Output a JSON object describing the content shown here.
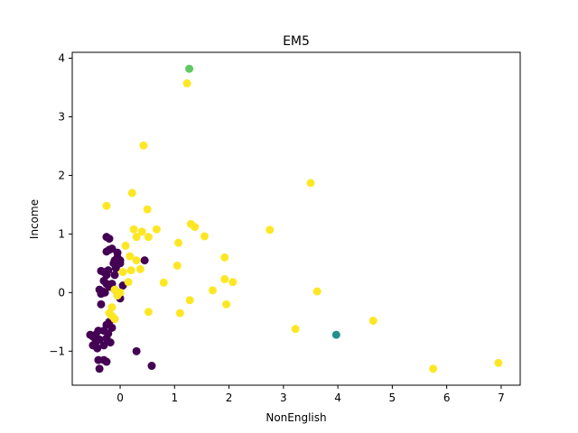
{
  "chart_data": {
    "type": "scatter",
    "title": "EM5",
    "xlabel": "NonEnglish",
    "ylabel": "Income",
    "xlim": [
      -0.88,
      7.35
    ],
    "ylim": [
      -1.58,
      4.1
    ],
    "x_ticks": [
      "0",
      "1",
      "2",
      "3",
      "4",
      "5",
      "6",
      "7"
    ],
    "y_ticks": [
      "−1",
      "0",
      "1",
      "2",
      "3",
      "4"
    ],
    "x_tick_values": [
      0,
      1,
      2,
      3,
      4,
      5,
      6,
      7
    ],
    "y_tick_values": [
      -1,
      0,
      1,
      2,
      3,
      4
    ],
    "grid": false,
    "legend": "none",
    "series": [
      {
        "color": "#440154",
        "points": [
          [
            -0.25,
            0.95
          ],
          [
            -0.2,
            0.73
          ],
          [
            -0.15,
            0.75
          ],
          [
            -0.25,
            0.7
          ],
          [
            -0.2,
            0.92
          ],
          [
            -0.05,
            0.68
          ],
          [
            -0.1,
            0.55
          ],
          [
            -0.05,
            0.6
          ],
          [
            0.0,
            0.55
          ],
          [
            -0.12,
            0.5
          ],
          [
            -0.05,
            0.48
          ],
          [
            0.0,
            0.5
          ],
          [
            -0.08,
            0.42
          ],
          [
            -0.35,
            0.37
          ],
          [
            -0.3,
            0.35
          ],
          [
            -0.25,
            0.3
          ],
          [
            -0.22,
            0.38
          ],
          [
            -0.1,
            0.3
          ],
          [
            -0.3,
            0.2
          ],
          [
            -0.25,
            0.15
          ],
          [
            -0.2,
            0.1
          ],
          [
            -0.15,
            0.15
          ],
          [
            -0.1,
            0.05
          ],
          [
            -0.05,
            0.0
          ],
          [
            0.05,
            0.12
          ],
          [
            -0.38,
            0.05
          ],
          [
            -0.32,
            0.02
          ],
          [
            -0.35,
            -0.02
          ],
          [
            -0.28,
            0.0
          ],
          [
            -0.35,
            -0.2
          ],
          [
            0.0,
            -0.1
          ],
          [
            -0.2,
            -0.5
          ],
          [
            -0.25,
            -0.55
          ],
          [
            -0.15,
            -0.6
          ],
          [
            -0.3,
            -0.65
          ],
          [
            -0.22,
            -0.7
          ],
          [
            -0.25,
            -0.78
          ],
          [
            -0.4,
            -0.65
          ],
          [
            -0.45,
            -0.72
          ],
          [
            -0.5,
            -0.75
          ],
          [
            -0.55,
            -0.72
          ],
          [
            -0.38,
            -0.8
          ],
          [
            -0.45,
            -0.85
          ],
          [
            -0.5,
            -0.9
          ],
          [
            -0.42,
            -0.95
          ],
          [
            -0.3,
            -0.9
          ],
          [
            -0.18,
            -0.85
          ],
          [
            -0.4,
            -1.15
          ],
          [
            -0.3,
            -1.15
          ],
          [
            -0.25,
            -1.18
          ],
          [
            -0.38,
            -1.3
          ],
          [
            0.3,
            -1.0
          ],
          [
            0.58,
            -1.25
          ],
          [
            0.45,
            0.55
          ]
        ]
      },
      {
        "color": "#fde725",
        "points": [
          [
            1.23,
            3.57
          ],
          [
            0.43,
            2.51
          ],
          [
            3.5,
            1.87
          ],
          [
            0.22,
            1.7
          ],
          [
            -0.25,
            1.48
          ],
          [
            0.5,
            1.42
          ],
          [
            1.3,
            1.17
          ],
          [
            1.37,
            1.12
          ],
          [
            0.25,
            1.08
          ],
          [
            0.4,
            1.04
          ],
          [
            0.67,
            1.08
          ],
          [
            2.75,
            1.07
          ],
          [
            0.3,
            0.95
          ],
          [
            0.52,
            0.95
          ],
          [
            1.55,
            0.96
          ],
          [
            1.07,
            0.85
          ],
          [
            0.1,
            0.8
          ],
          [
            0.18,
            0.62
          ],
          [
            0.3,
            0.55
          ],
          [
            1.92,
            0.6
          ],
          [
            0.2,
            0.38
          ],
          [
            0.37,
            0.4
          ],
          [
            0.05,
            0.35
          ],
          [
            1.05,
            0.46
          ],
          [
            0.8,
            0.17
          ],
          [
            0.15,
            0.18
          ],
          [
            1.92,
            0.23
          ],
          [
            2.07,
            0.18
          ],
          [
            1.7,
            0.04
          ],
          [
            3.62,
            0.02
          ],
          [
            0.0,
            0.0
          ],
          [
            -0.1,
            0.05
          ],
          [
            -0.05,
            -0.05
          ],
          [
            -0.15,
            -0.25
          ],
          [
            -0.2,
            -0.35
          ],
          [
            1.28,
            -0.13
          ],
          [
            1.95,
            -0.2
          ],
          [
            0.52,
            -0.33
          ],
          [
            1.1,
            -0.35
          ],
          [
            -0.1,
            -0.45
          ],
          [
            -0.15,
            -0.4
          ],
          [
            3.22,
            -0.62
          ],
          [
            4.65,
            -0.48
          ],
          [
            5.75,
            -1.3
          ],
          [
            6.95,
            -1.2
          ]
        ]
      },
      {
        "color": "#21918c",
        "points": [
          [
            3.97,
            -0.72
          ]
        ]
      },
      {
        "color": "#5ec962",
        "points": [
          [
            1.27,
            3.82
          ]
        ]
      }
    ]
  }
}
